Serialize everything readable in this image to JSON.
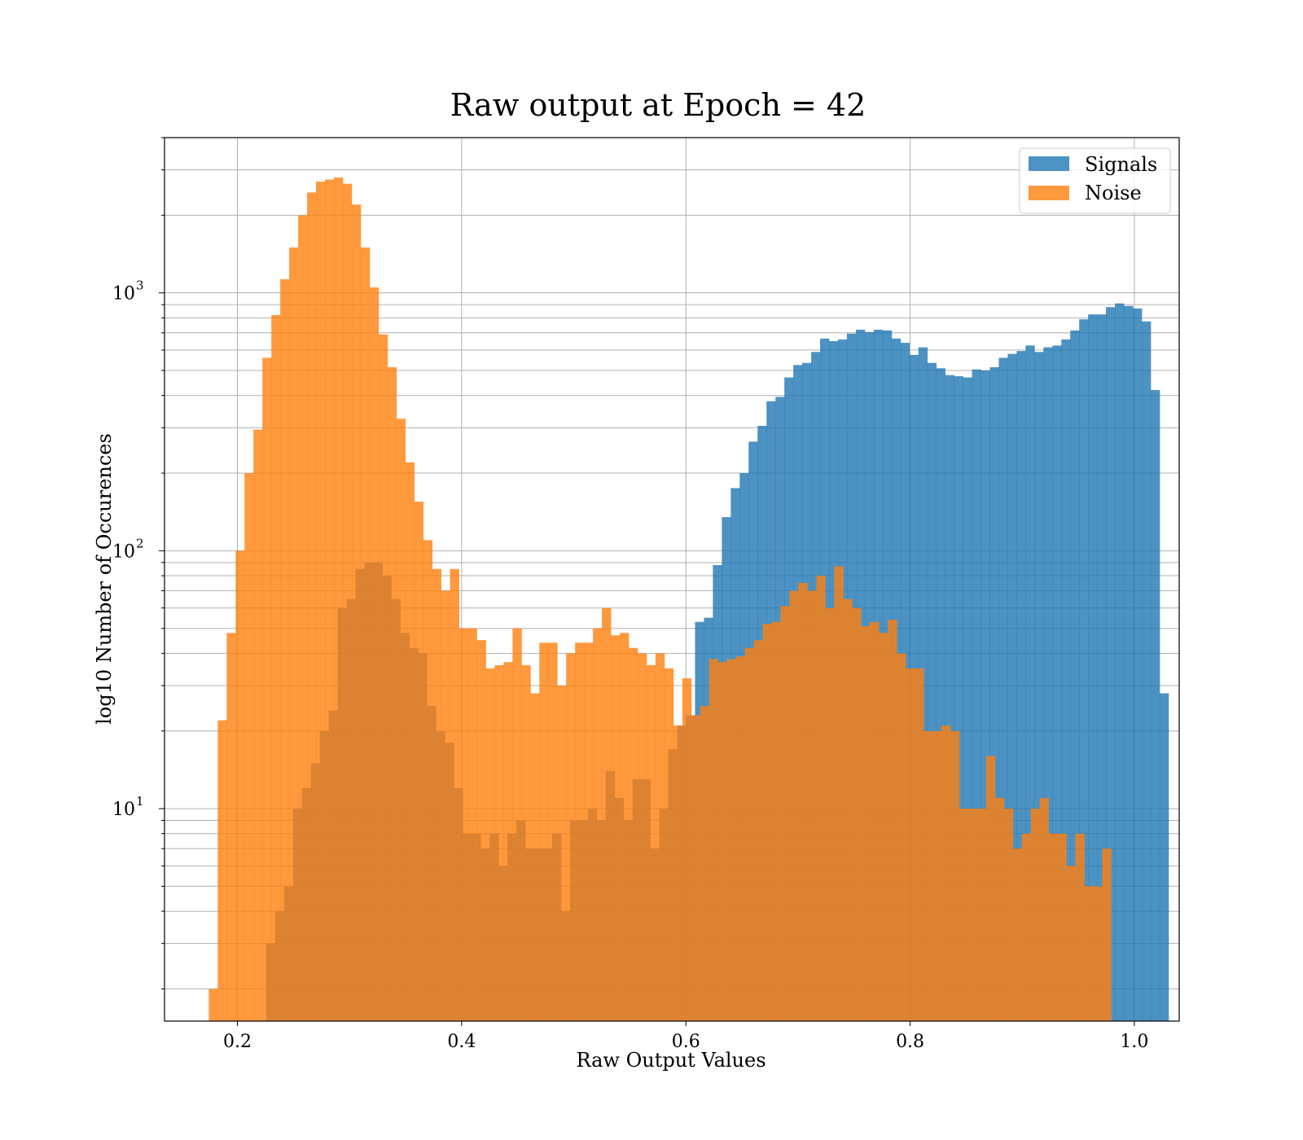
{
  "chart_data": {
    "type": "histogram",
    "title": "Raw output at Epoch = 42",
    "xlabel": "Raw Output Values",
    "ylabel": "log10 Number of Occurences",
    "yscale": "log",
    "xlim": [
      0.135,
      1.04
    ],
    "ylim": [
      1.5,
      4000
    ],
    "grid": true,
    "legend_position": "top-right",
    "x_ticks": [
      "0.2",
      "0.4",
      "0.6",
      "0.8",
      "1.0"
    ],
    "y_ticks": [
      {
        "base": "10",
        "exp": "1",
        "value": 10
      },
      {
        "base": "10",
        "exp": "2",
        "value": 100
      },
      {
        "base": "10",
        "exp": "3",
        "value": 1000
      }
    ],
    "series": [
      {
        "name": "Signals",
        "color": "#1f77b4",
        "alpha": 0.8,
        "bin_start": 0.2257,
        "bin_width": 0.007968,
        "counts": [
          3,
          4,
          5,
          10,
          12,
          15,
          20,
          24,
          60,
          65,
          85,
          90,
          90,
          80,
          65,
          48,
          42,
          40,
          25,
          20,
          18,
          12,
          8,
          8,
          7,
          8,
          6,
          8,
          9,
          7,
          7,
          7,
          8,
          4,
          9,
          9,
          10,
          9,
          14,
          11,
          9,
          13,
          13,
          7,
          10,
          17,
          21,
          23,
          53,
          55,
          88,
          135,
          175,
          200,
          265,
          305,
          380,
          395,
          470,
          525,
          535,
          590,
          665,
          650,
          660,
          695,
          720,
          705,
          720,
          715,
          665,
          640,
          575,
          615,
          535,
          510,
          480,
          475,
          470,
          505,
          500,
          515,
          560,
          580,
          595,
          625,
          590,
          615,
          625,
          660,
          715,
          790,
          825,
          825,
          880,
          910,
          890,
          870,
          775,
          420,
          28
        ]
      },
      {
        "name": "Noise",
        "color": "#ff7f0e",
        "alpha": 0.8,
        "bin_start": 0.1745,
        "bin_width": 0.007968,
        "counts": [
          2,
          22,
          48,
          100,
          200,
          295,
          560,
          820,
          1130,
          1500,
          2000,
          2450,
          2700,
          2750,
          2800,
          2650,
          2200,
          1500,
          1050,
          690,
          515,
          325,
          220,
          155,
          110,
          85,
          70,
          85,
          50,
          50,
          45,
          35,
          36,
          37,
          50,
          36,
          28,
          44,
          44,
          30,
          40,
          44,
          44,
          50,
          60,
          47,
          48,
          42,
          40,
          36,
          40,
          35,
          21,
          32,
          23,
          25,
          38,
          37,
          38,
          39,
          42,
          45,
          52,
          53,
          61,
          70,
          75,
          70,
          80,
          60,
          87,
          65,
          60,
          51,
          53,
          48,
          54,
          40,
          35,
          35,
          20,
          20,
          21,
          20,
          10,
          10,
          10,
          16,
          11,
          10,
          7,
          8,
          10,
          11,
          8,
          8,
          6,
          8,
          5,
          5,
          7
        ]
      }
    ]
  }
}
